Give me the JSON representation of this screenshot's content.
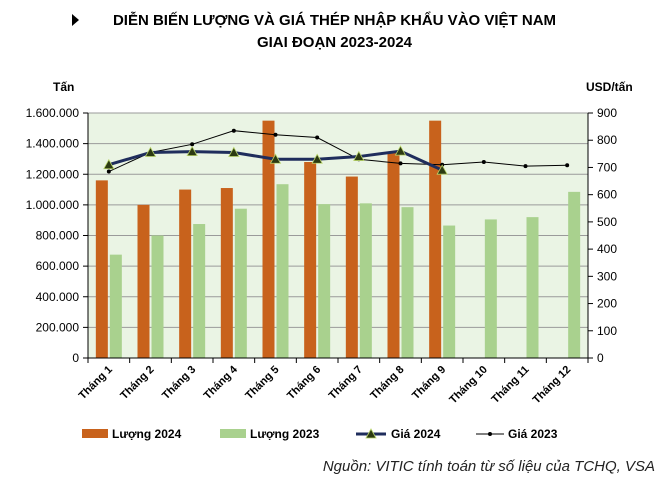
{
  "title_line1": "DIỄN BIẾN LƯỢNG VÀ GIÁ THÉP NHẬP KHẨU VÀO VIỆT NAM",
  "title_line2": "GIAI ĐOẠN 2023-2024",
  "source": "Nguồn: VITIC tính toán từ số liệu của TCHQ, VSA",
  "colors": {
    "plot_bg": "#eaf4e4",
    "luong_2024": "#c8621c",
    "luong_2023": "#a9d18e",
    "gia_2024": "#1f2d5c",
    "gia_2023": "#000000"
  },
  "chart_data": {
    "type": "bar",
    "categories": [
      "Tháng 1",
      "Tháng 2",
      "Tháng 3",
      "Tháng 4",
      "Tháng 5",
      "Tháng 6",
      "Tháng 7",
      "Tháng 8",
      "Tháng 9",
      "Tháng 10",
      "Tháng 11",
      "Tháng 12"
    ],
    "ylabel_left": "Tấn",
    "ylabel_right": "USD/tấn",
    "ylim_left": [
      0,
      1600000
    ],
    "ylim_right": [
      0,
      900
    ],
    "yticks_left": [
      "0",
      "200.000",
      "400.000",
      "600.000",
      "800.000",
      "1.000.000",
      "1.200.000",
      "1.400.000",
      "1.600.000"
    ],
    "yticks_right": [
      "0",
      "100",
      "200",
      "300",
      "400",
      "500",
      "600",
      "700",
      "800",
      "900"
    ],
    "grid": true,
    "legend_position": "bottom",
    "bar_series": [
      {
        "name": "Lượng 2024",
        "values": [
          1160000,
          1000000,
          1100000,
          1110000,
          1550000,
          1280000,
          1185000,
          1340000,
          1550000,
          null,
          null,
          null
        ]
      },
      {
        "name": "Lượng 2023",
        "values": [
          675000,
          800000,
          875000,
          975000,
          1135000,
          1005000,
          1010000,
          985000,
          865000,
          905000,
          920000,
          1085000
        ]
      }
    ],
    "line_series": [
      {
        "name": "Giá 2024",
        "values": [
          710,
          755,
          758,
          755,
          730,
          730,
          740,
          760,
          690,
          null,
          null,
          null
        ]
      },
      {
        "name": "Giá 2023",
        "values": [
          685,
          755,
          785,
          835,
          820,
          810,
          730,
          715,
          710,
          720,
          705,
          708
        ]
      }
    ]
  }
}
